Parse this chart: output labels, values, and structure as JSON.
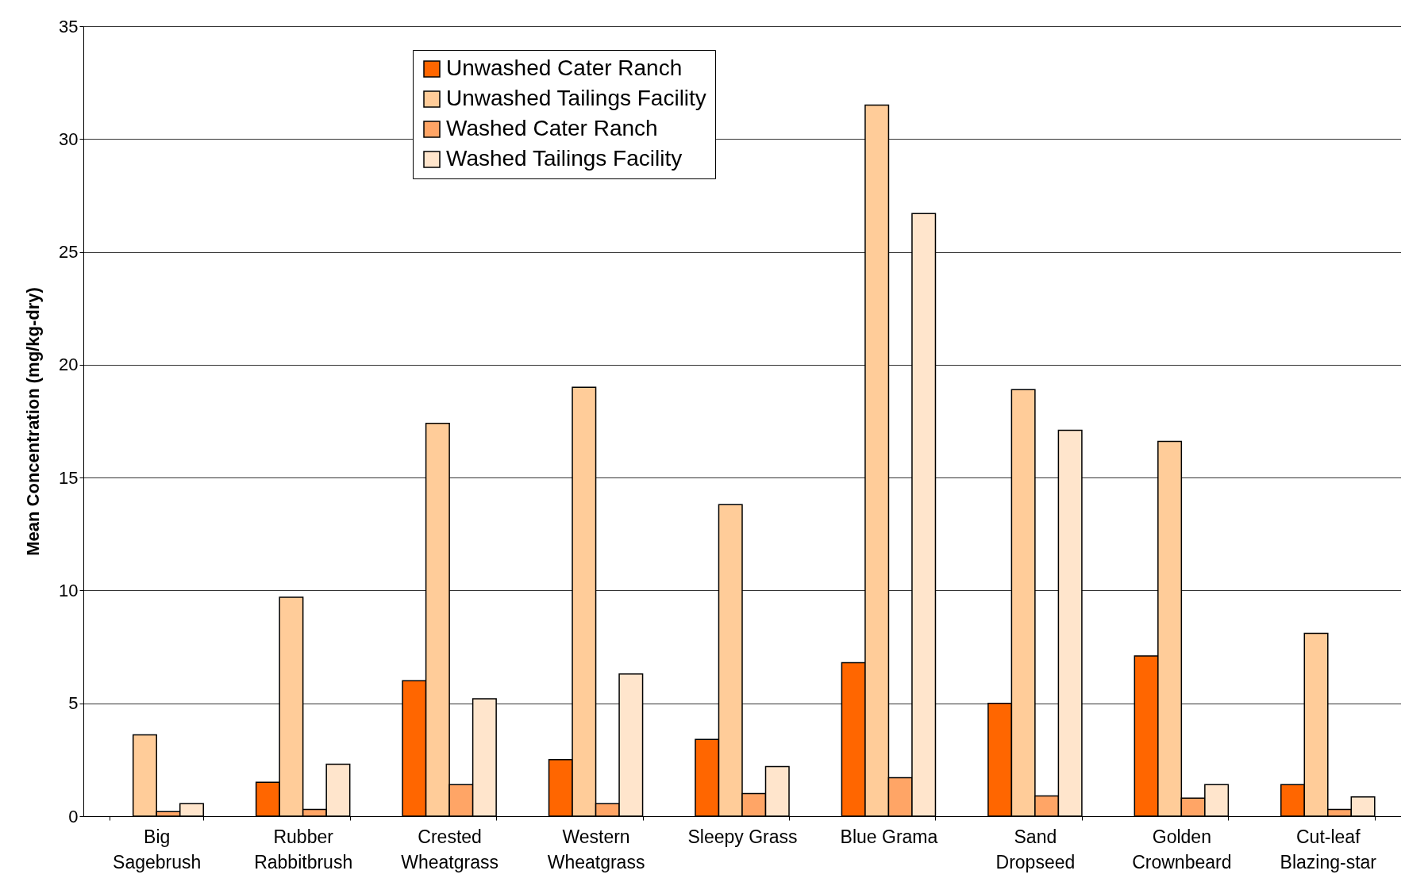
{
  "chart_data": {
    "type": "bar",
    "ylabel": "Mean Concentration (mg/kg-dry)",
    "categories": [
      "Big Sagebrush",
      "Rubber Rabbitbrush",
      "Crested Wheatgrass",
      "Western Wheatgrass",
      "Sleepy Grass",
      "Blue Grama",
      "Sand Dropseed",
      "Golden Crownbeard",
      "Cut-leaf Blazing-star"
    ],
    "series": [
      {
        "name": "Unwashed Cater Ranch",
        "color": "#ff6600",
        "values": [
          null,
          1.5,
          6.0,
          2.5,
          3.4,
          6.8,
          5.0,
          7.1,
          1.4
        ]
      },
      {
        "name": "Unwashed Tailings Facility",
        "color": "#ffcc99",
        "values": [
          3.6,
          9.7,
          17.4,
          19.0,
          13.8,
          31.5,
          18.9,
          16.6,
          8.1
        ]
      },
      {
        "name": "Washed Cater Ranch",
        "color": "#ffa566",
        "values": [
          0.2,
          0.3,
          1.4,
          0.55,
          1.0,
          1.7,
          0.9,
          0.8,
          0.3
        ]
      },
      {
        "name": "Washed Tailings Facility",
        "color": "#ffe5cc",
        "values": [
          0.55,
          2.3,
          5.2,
          6.3,
          2.2,
          26.7,
          17.1,
          1.4,
          0.85
        ]
      }
    ],
    "ylim": [
      0,
      35
    ],
    "yticks": [
      0,
      5,
      10,
      15,
      20,
      25,
      30,
      35
    ],
    "grid": "y",
    "legend": "top"
  }
}
